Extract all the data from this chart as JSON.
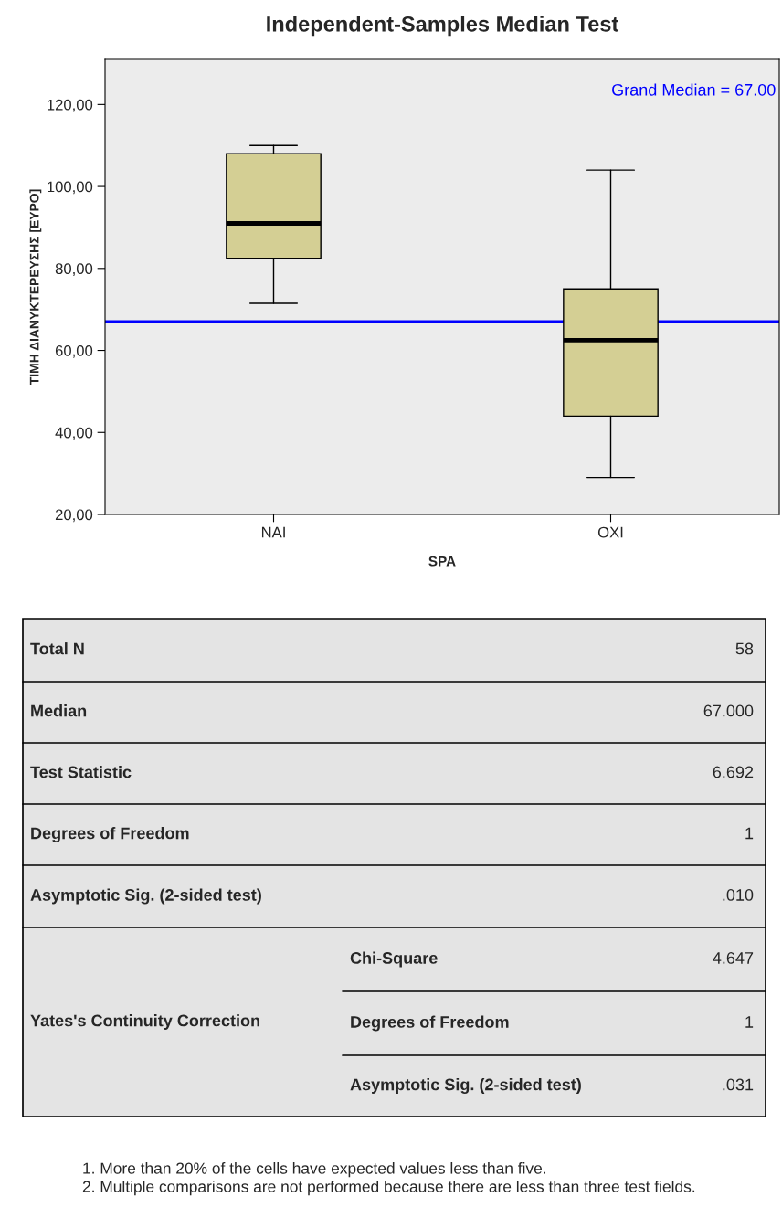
{
  "chart_data": {
    "type": "box",
    "title": "Independent-Samples Median Test",
    "xlabel": "SPA",
    "ylabel": "ΤΙΜΗ ΔΙΑΝΥΚΤΕΡΕΥΣΗΣ [ΕΥΡΟ]",
    "categories": [
      "ΝΑΙ",
      "ΟΧΙ"
    ],
    "series": [
      {
        "color": "#d4cf94",
        "boxes": [
          {
            "low": 71.5,
            "q1": 82.5,
            "median": 91,
            "q3": 108,
            "high": 110
          },
          {
            "low": 29,
            "q1": 44,
            "median": 62.5,
            "q3": 75,
            "high": 104
          }
        ]
      }
    ],
    "ylim": [
      20,
      131
    ],
    "yticks": [
      {
        "value": 20,
        "label": "20,00"
      },
      {
        "value": 40,
        "label": "40,00"
      },
      {
        "value": 60,
        "label": "60,00"
      },
      {
        "value": 80,
        "label": "80,00"
      },
      {
        "value": 100,
        "label": "100,00"
      },
      {
        "value": 120,
        "label": "120,00"
      }
    ],
    "ref_lines": [
      {
        "axis": "y",
        "value": 67,
        "label": "Grand Median = 67.00",
        "color": "#0000ff"
      }
    ],
    "grid": false,
    "annotations": [
      "Total N",
      "58",
      "Median",
      "67.000",
      "Test Statistic",
      "6.692",
      "Degrees of Freedom",
      "1",
      "Asymptotic Sig. (2-sided test)",
      ".010",
      "Yates's Continuity Correction",
      "Chi-Square",
      "4.647",
      "Degrees of Freedom",
      "1",
      "Asymptotic Sig. (2-sided test)",
      ".031",
      "1. More than 20% of the cells have expected values less than five.",
      "2. Multiple comparisons are not performed because there are less than three test fields."
    ]
  }
}
